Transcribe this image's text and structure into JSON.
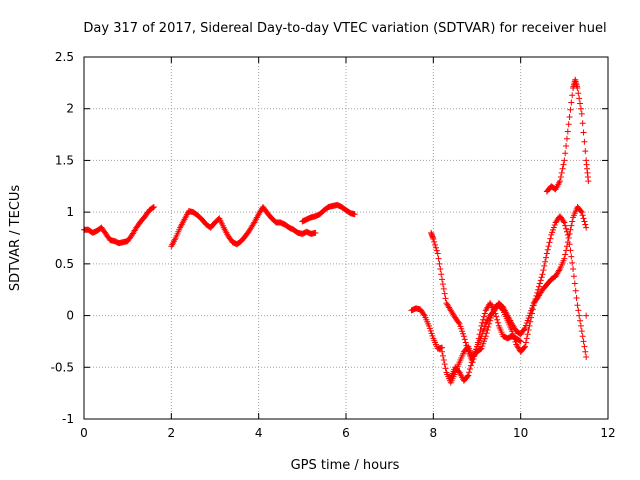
{
  "chart_data": {
    "type": "scatter",
    "title": "Day 317 of 2017, Sidereal Day-to-day VTEC variation (SDTVAR) for receiver huel",
    "xlabel": "GPS time / hours",
    "ylabel": "SDTVAR / TECUs",
    "xlim": [
      0,
      12
    ],
    "ylim": [
      -1,
      2.5
    ],
    "xticks": [
      0,
      2,
      4,
      6,
      8,
      10,
      12
    ],
    "xtick_labels": [
      "0",
      "2",
      "4",
      "6",
      "8",
      "10",
      "12"
    ],
    "yticks": [
      -1,
      -0.5,
      0,
      0.5,
      1,
      1.5,
      2,
      2.5
    ],
    "ytick_labels": [
      "-1",
      "-0.5",
      "0",
      "0.5",
      "1",
      "1.5",
      "2",
      "2.5"
    ],
    "grid": true,
    "marker": "+",
    "series": [
      {
        "color": "#ff0000",
        "segments": [
          [
            [
              0.0,
              0.83
            ],
            [
              0.1,
              0.83
            ],
            [
              0.2,
              0.8
            ],
            [
              0.3,
              0.82
            ],
            [
              0.4,
              0.85
            ],
            [
              0.5,
              0.79
            ],
            [
              0.6,
              0.73
            ],
            [
              0.7,
              0.72
            ],
            [
              0.8,
              0.7
            ],
            [
              0.9,
              0.71
            ],
            [
              1.0,
              0.72
            ],
            [
              1.1,
              0.78
            ],
            [
              1.2,
              0.85
            ],
            [
              1.3,
              0.91
            ],
            [
              1.4,
              0.96
            ],
            [
              1.5,
              1.02
            ],
            [
              1.6,
              1.05
            ]
          ],
          [
            [
              2.0,
              0.67
            ],
            [
              2.1,
              0.75
            ],
            [
              2.2,
              0.85
            ],
            [
              2.3,
              0.93
            ],
            [
              2.4,
              1.01
            ],
            [
              2.5,
              1.0
            ],
            [
              2.6,
              0.97
            ],
            [
              2.7,
              0.93
            ],
            [
              2.8,
              0.88
            ],
            [
              2.9,
              0.85
            ],
            [
              3.0,
              0.9
            ],
            [
              3.1,
              0.94
            ],
            [
              3.2,
              0.85
            ],
            [
              3.3,
              0.77
            ],
            [
              3.4,
              0.71
            ],
            [
              3.5,
              0.69
            ],
            [
              3.6,
              0.72
            ],
            [
              3.7,
              0.77
            ],
            [
              3.8,
              0.83
            ],
            [
              3.9,
              0.9
            ],
            [
              4.0,
              0.98
            ],
            [
              4.1,
              1.05
            ],
            [
              4.2,
              0.99
            ],
            [
              4.3,
              0.94
            ],
            [
              4.4,
              0.9
            ],
            [
              4.5,
              0.9
            ],
            [
              4.6,
              0.88
            ],
            [
              4.7,
              0.85
            ],
            [
              4.8,
              0.83
            ],
            [
              4.9,
              0.8
            ],
            [
              5.0,
              0.79
            ],
            [
              5.1,
              0.81
            ],
            [
              5.2,
              0.79
            ],
            [
              5.3,
              0.8
            ]
          ],
          [
            [
              5.0,
              0.91
            ],
            [
              5.1,
              0.93
            ],
            [
              5.2,
              0.95
            ],
            [
              5.3,
              0.96
            ],
            [
              5.4,
              0.98
            ],
            [
              5.5,
              1.02
            ],
            [
              5.6,
              1.05
            ],
            [
              5.7,
              1.06
            ],
            [
              5.8,
              1.07
            ],
            [
              5.9,
              1.05
            ],
            [
              6.0,
              1.02
            ],
            [
              6.1,
              0.99
            ],
            [
              6.2,
              0.98
            ]
          ],
          [
            [
              7.5,
              0.05
            ],
            [
              7.6,
              0.07
            ],
            [
              7.7,
              0.06
            ],
            [
              7.8,
              0.0
            ],
            [
              7.9,
              -0.1
            ],
            [
              8.0,
              -0.22
            ],
            [
              8.1,
              -0.32
            ],
            [
              8.2,
              -0.31
            ]
          ],
          [
            [
              7.95,
              0.8
            ],
            [
              8.0,
              0.74
            ],
            [
              8.1,
              0.6
            ],
            [
              8.2,
              0.35
            ],
            [
              8.3,
              0.12
            ],
            [
              8.4,
              0.05
            ],
            [
              8.5,
              -0.02
            ],
            [
              8.6,
              -0.08
            ],
            [
              8.7,
              -0.2
            ],
            [
              8.8,
              -0.35
            ],
            [
              8.9,
              -0.45
            ],
            [
              9.0,
              -0.3
            ],
            [
              9.1,
              -0.1
            ],
            [
              9.2,
              0.05
            ],
            [
              9.3,
              0.12
            ],
            [
              9.4,
              0.05
            ],
            [
              9.5,
              -0.1
            ],
            [
              9.6,
              -0.2
            ],
            [
              9.7,
              -0.22
            ],
            [
              9.8,
              -0.2
            ],
            [
              9.9,
              -0.22
            ],
            [
              10.0,
              -0.25
            ]
          ],
          [
            [
              8.2,
              -0.35
            ],
            [
              8.3,
              -0.55
            ],
            [
              8.4,
              -0.65
            ],
            [
              8.5,
              -0.55
            ],
            [
              8.6,
              -0.45
            ],
            [
              8.7,
              -0.35
            ],
            [
              8.8,
              -0.3
            ],
            [
              8.9,
              -0.4
            ],
            [
              9.0,
              -0.35
            ],
            [
              9.1,
              -0.32
            ],
            [
              9.2,
              -0.2
            ],
            [
              9.3,
              -0.05
            ],
            [
              9.4,
              0.08
            ],
            [
              9.5,
              0.1
            ],
            [
              9.6,
              0.05
            ],
            [
              9.7,
              -0.05
            ],
            [
              9.8,
              -0.15
            ],
            [
              9.9,
              -0.28
            ],
            [
              10.0,
              -0.35
            ],
            [
              10.1,
              -0.3
            ],
            [
              10.2,
              -0.1
            ],
            [
              10.3,
              0.1
            ],
            [
              10.4,
              0.25
            ],
            [
              10.5,
              0.4
            ],
            [
              10.6,
              0.6
            ],
            [
              10.7,
              0.78
            ],
            [
              10.8,
              0.9
            ],
            [
              10.9,
              0.96
            ],
            [
              11.0,
              0.9
            ],
            [
              11.1,
              0.75
            ],
            [
              11.2,
              0.45
            ],
            [
              11.3,
              0.1
            ],
            [
              11.4,
              -0.15
            ],
            [
              11.5,
              -0.4
            ]
          ],
          [
            [
              8.4,
              -0.6
            ],
            [
              8.5,
              -0.5
            ],
            [
              8.6,
              -0.55
            ],
            [
              8.7,
              -0.63
            ],
            [
              8.8,
              -0.58
            ],
            [
              8.9,
              -0.42
            ],
            [
              9.0,
              -0.3
            ],
            [
              9.1,
              -0.2
            ],
            [
              9.2,
              -0.08
            ],
            [
              9.3,
              0.0
            ],
            [
              9.4,
              0.05
            ],
            [
              9.5,
              0.12
            ],
            [
              9.6,
              0.08
            ],
            [
              9.7,
              0.0
            ],
            [
              9.8,
              -0.08
            ],
            [
              9.9,
              -0.15
            ],
            [
              10.0,
              -0.18
            ],
            [
              10.1,
              -0.12
            ],
            [
              10.2,
              0.0
            ],
            [
              10.3,
              0.12
            ],
            [
              10.4,
              0.18
            ],
            [
              10.5,
              0.25
            ],
            [
              10.6,
              0.3
            ],
            [
              10.7,
              0.35
            ],
            [
              10.8,
              0.38
            ],
            [
              10.9,
              0.45
            ],
            [
              11.0,
              0.55
            ],
            [
              11.1,
              0.75
            ],
            [
              11.2,
              0.95
            ],
            [
              11.3,
              1.05
            ],
            [
              11.4,
              1.0
            ],
            [
              11.5,
              0.85
            ]
          ],
          [
            [
              10.6,
              1.2
            ],
            [
              10.7,
              1.25
            ],
            [
              10.8,
              1.22
            ],
            [
              10.9,
              1.3
            ],
            [
              11.0,
              1.5
            ],
            [
              11.1,
              1.85
            ],
            [
              11.2,
              2.2
            ],
            [
              11.25,
              2.28
            ],
            [
              11.3,
              2.2
            ],
            [
              11.4,
              1.95
            ],
            [
              11.5,
              1.5
            ],
            [
              11.55,
              1.3
            ]
          ],
          [
            [
              11.5,
              0.0
            ]
          ]
        ]
      }
    ]
  }
}
